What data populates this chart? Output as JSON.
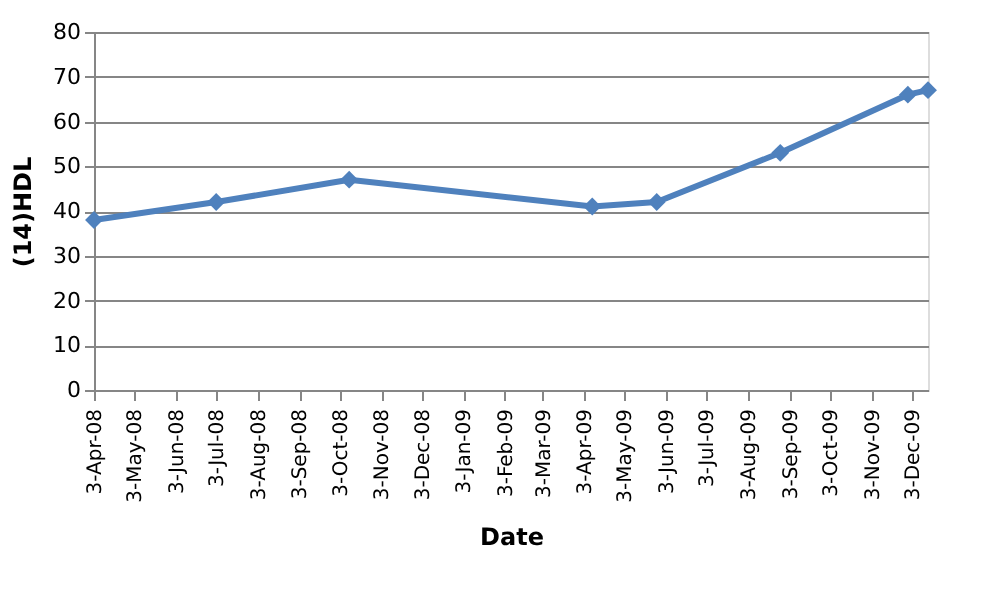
{
  "chart_data": {
    "type": "line",
    "xlabel": "Date",
    "ylabel": "(14)HDL",
    "x": [
      "2008-04-03",
      "2008-07-03",
      "2008-10-10",
      "2009-04-09",
      "2009-05-27",
      "2009-08-27",
      "2009-11-30",
      "2009-12-15"
    ],
    "series": [
      {
        "color": "#4f81bd",
        "values": [
          38,
          42,
          47,
          41,
          42,
          53,
          66,
          67
        ]
      }
    ],
    "xlim": [
      "2008-04-03",
      "2009-12-15"
    ],
    "xticks": [
      {
        "value": "2008-04-03",
        "label": "3-Apr-08"
      },
      {
        "value": "2008-05-03",
        "label": "3-May-08"
      },
      {
        "value": "2008-06-03",
        "label": "3-Jun-08"
      },
      {
        "value": "2008-07-03",
        "label": "3-Jul-08"
      },
      {
        "value": "2008-08-03",
        "label": "3-Aug-08"
      },
      {
        "value": "2008-09-03",
        "label": "3-Sep-08"
      },
      {
        "value": "2008-10-03",
        "label": "3-Oct-08"
      },
      {
        "value": "2008-11-03",
        "label": "3-Nov-08"
      },
      {
        "value": "2008-12-03",
        "label": "3-Dec-08"
      },
      {
        "value": "2009-01-03",
        "label": "3-Jan-09"
      },
      {
        "value": "2009-02-03",
        "label": "3-Feb-09"
      },
      {
        "value": "2009-03-03",
        "label": "3-Mar-09"
      },
      {
        "value": "2009-04-03",
        "label": "3-Apr-09"
      },
      {
        "value": "2009-05-03",
        "label": "3-May-09"
      },
      {
        "value": "2009-06-03",
        "label": "3-Jun-09"
      },
      {
        "value": "2009-07-03",
        "label": "3-Jul-09"
      },
      {
        "value": "2009-08-03",
        "label": "3-Aug-09"
      },
      {
        "value": "2009-09-03",
        "label": "3-Sep-09"
      },
      {
        "value": "2009-10-03",
        "label": "3-Oct-09"
      },
      {
        "value": "2009-11-03",
        "label": "3-Nov-09"
      },
      {
        "value": "2009-12-03",
        "label": "3-Dec-09"
      }
    ],
    "ylim": [
      0,
      80
    ],
    "yticks": [
      0,
      10,
      20,
      30,
      40,
      50,
      60,
      70,
      80
    ],
    "grid": "y",
    "marker": "diamond",
    "line_style": "solid"
  }
}
